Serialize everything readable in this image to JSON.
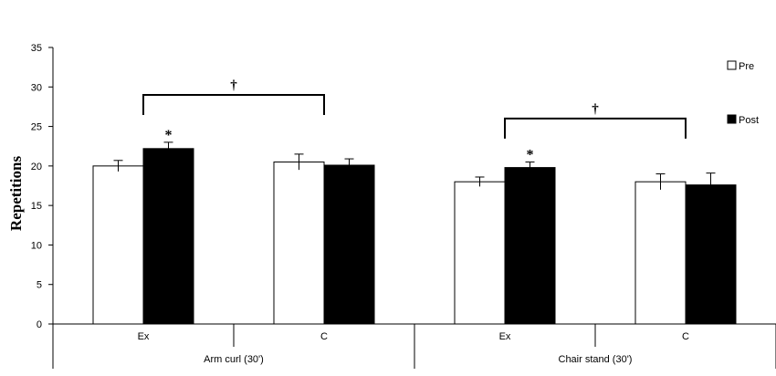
{
  "chart_data": {
    "type": "bar",
    "title": "",
    "ylabel": "Repetitions",
    "ylim": [
      0,
      35
    ],
    "yticks": [
      0,
      5,
      10,
      15,
      20,
      25,
      30,
      35
    ],
    "grid": false,
    "legend_position": "right",
    "groups": [
      {
        "label": "Arm curl (30')",
        "categories": [
          "Ex",
          "C"
        ]
      },
      {
        "label": "Chair stand (30')",
        "categories": [
          "Ex",
          "C"
        ]
      }
    ],
    "categories": [
      "Ex",
      "C",
      "Ex",
      "C"
    ],
    "series": [
      {
        "name": "Pre",
        "color": "#ffffff",
        "values": [
          20.0,
          20.5,
          18.0,
          18.0
        ],
        "errors": [
          0.7,
          1.0,
          0.6,
          1.0
        ]
      },
      {
        "name": "Post",
        "color": "#000000",
        "values": [
          22.2,
          20.1,
          19.8,
          17.6
        ],
        "errors": [
          0.8,
          0.8,
          0.7,
          1.5
        ]
      }
    ],
    "annotations": [
      {
        "text": "*",
        "category_index": 0,
        "series": "Post"
      },
      {
        "text": "*",
        "category_index": 2,
        "series": "Post"
      },
      {
        "text": "†",
        "bracket": [
          0,
          1
        ],
        "y": 29
      },
      {
        "text": "†",
        "bracket": [
          2,
          3
        ],
        "y": 26
      }
    ]
  }
}
